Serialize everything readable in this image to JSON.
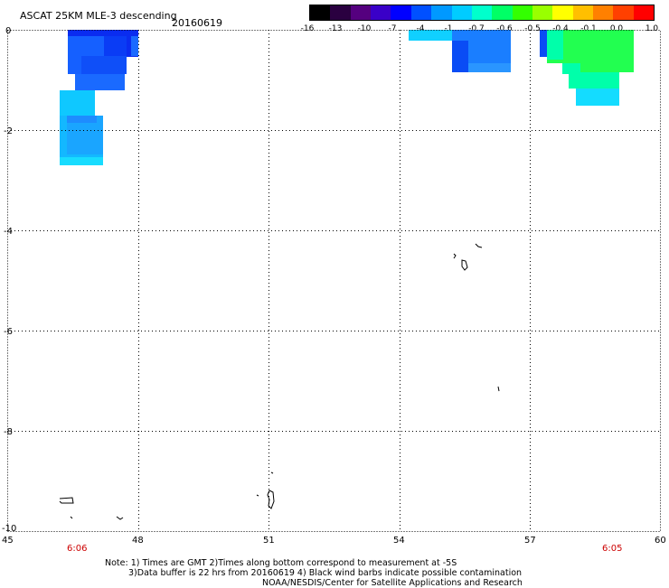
{
  "header": {
    "title": "ASCAT 25KM MLE-3 descending",
    "date": "20160619"
  },
  "colorbar": {
    "labels": [
      "-16",
      "-13",
      "-10",
      "-7",
      "-4",
      "-1",
      "-0.7",
      "-0.6",
      "-0.5",
      "-0.4",
      "-0.1",
      "0.0",
      "1.0"
    ],
    "colors": [
      "#000000",
      "#2a0040",
      "#55007f",
      "#3a00c8",
      "#0000ff",
      "#0050ff",
      "#0099ff",
      "#00ccff",
      "#00ffcc",
      "#00ff66",
      "#33ff00",
      "#99ff00",
      "#ffff00",
      "#ffbf00",
      "#ff8000",
      "#ff4000",
      "#ff0000"
    ]
  },
  "map": {
    "lon_ticks": [
      "45",
      "48",
      "51",
      "54",
      "57",
      "60"
    ],
    "lat_ticks": [
      "0",
      "-2",
      "-4",
      "-6",
      "-8",
      "-10"
    ],
    "time_labels": [
      "6:06",
      "6:05"
    ],
    "time_label_color": "#cc0000"
  },
  "footer": {
    "note_line1": "Note: 1) Times are GMT 2)Times along bottom correspond to measurement at -5S",
    "note_line2": "3)Data buffer is 22 hrs from 20160619 4) Black wind barbs indicate possible contamination",
    "credit": "NOAA/NESDIS/Center for Satellite Applications and Research"
  }
}
